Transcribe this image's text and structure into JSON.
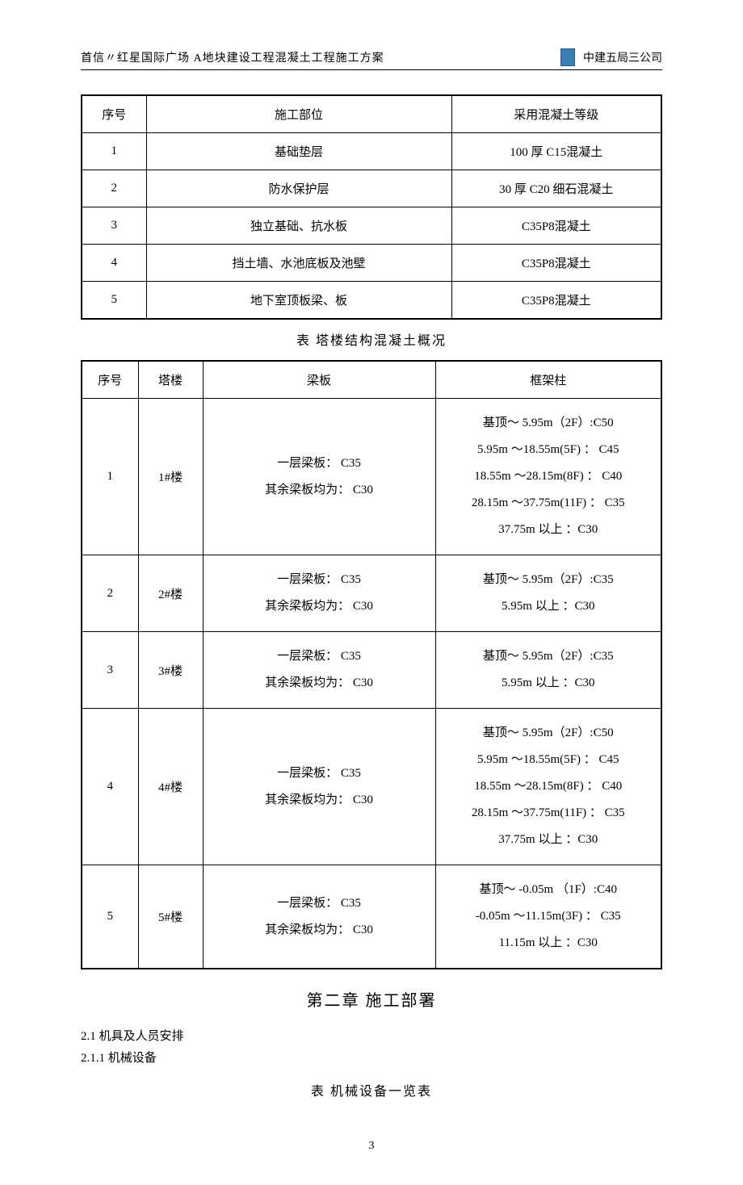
{
  "header": {
    "left": "首信〃红星国际广场   A地块建设工程混凝土工程施工方案",
    "right": "中建五局三公司"
  },
  "table1": {
    "columns": [
      "序号",
      "施工部位",
      "采用混凝土等级"
    ],
    "rows": [
      [
        "1",
        "基础垫层",
        "100 厚 C15混凝土"
      ],
      [
        "2",
        "防水保护层",
        "30 厚 C20 细石混凝土"
      ],
      [
        "3",
        "独立基础、抗水板",
        "C35P8混凝土"
      ],
      [
        "4",
        "挡土墙、水池底板及池壁",
        "C35P8混凝土"
      ],
      [
        "5",
        "地下室顶板梁、板",
        "C35P8混凝土"
      ]
    ],
    "col_widths": [
      "80px",
      "auto",
      "260px"
    ]
  },
  "table2_caption": "表      塔楼结构混凝土概况",
  "table2": {
    "columns": [
      "序号",
      "塔楼",
      "梁板",
      "框架柱"
    ],
    "rows": [
      {
        "num": "1",
        "tower": "1#楼",
        "beam": [
          "一层梁板：   C35",
          "其余梁板均为：   C30"
        ],
        "col": [
          "基顶～ 5.95m（2F）:C50",
          "5.95m ～18.55m(5F)  ： C45",
          "18.55m ～28.15m(8F)  ： C40",
          "28.15m ～37.75m(11F)  ： C35",
          "37.75m 以上  ：C30"
        ]
      },
      {
        "num": "2",
        "tower": "2#楼",
        "beam": [
          "一层梁板：   C35",
          "其余梁板均为：   C30"
        ],
        "col": [
          "基顶～ 5.95m（2F）:C35",
          "5.95m 以上  ：C30"
        ]
      },
      {
        "num": "3",
        "tower": "3#楼",
        "beam": [
          "一层梁板：   C35",
          "其余梁板均为：   C30"
        ],
        "col": [
          "基顶～ 5.95m（2F）:C35",
          "5.95m 以上  ：C30"
        ]
      },
      {
        "num": "4",
        "tower": "4#楼",
        "beam": [
          "一层梁板：   C35",
          "其余梁板均为：   C30"
        ],
        "col": [
          "基顶～ 5.95m（2F）:C50",
          "5.95m ～18.55m(5F)  ： C45",
          "18.55m ～28.15m(8F)  ： C40",
          "28.15m ～37.75m(11F)  ： C35",
          "37.75m 以上  ：C30"
        ]
      },
      {
        "num": "5",
        "tower": "5#楼",
        "beam": [
          "一层梁板：   C35",
          "其余梁板均为：   C30"
        ],
        "col": [
          "基顶～ -0.05m （1F）:C40",
          "-0.05m ～11.15m(3F)  ： C35",
          "11.15m 以上  ：C30"
        ]
      }
    ]
  },
  "chapter": "第二章    施工部署",
  "section_2_1": "2.1  机具及人员安排",
  "section_2_1_1": "2.1.1  机械设备",
  "table3_caption": "表     机械设备一览表",
  "page_number": "3",
  "colors": {
    "text": "#000000",
    "border": "#000000",
    "background": "#ffffff",
    "logo": "#3b7db5"
  }
}
